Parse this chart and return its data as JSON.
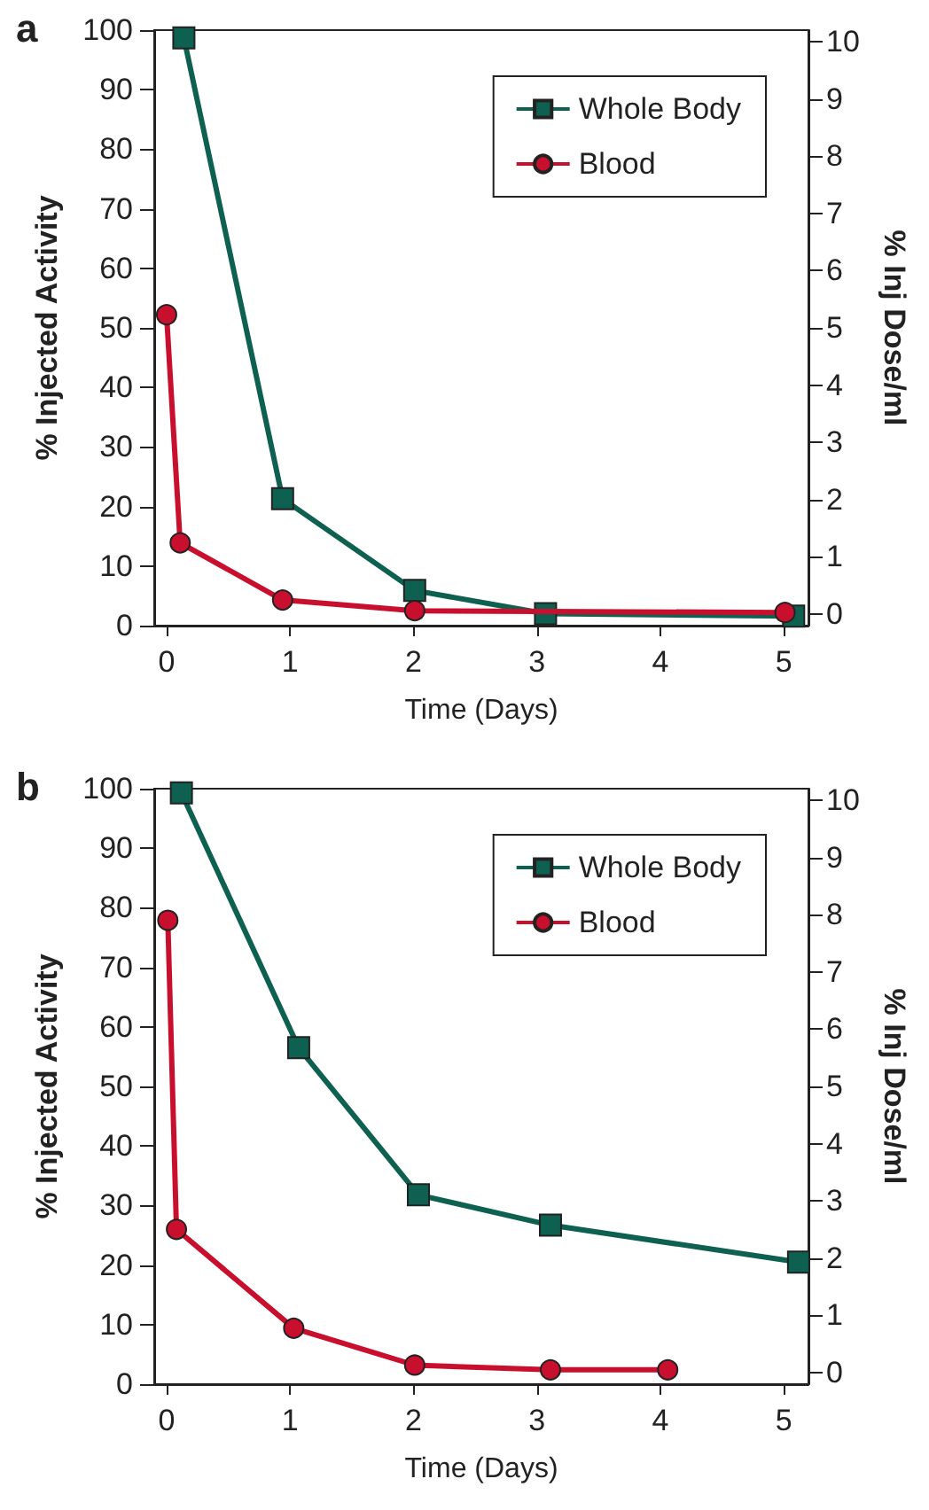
{
  "chart_data": [
    {
      "type": "line",
      "title": "a",
      "xlabel": "Time (Days)",
      "ylabel": "% Injected Activity",
      "y2label": "% Inj Dose/ml",
      "xlim": [
        -0.1,
        5.2
      ],
      "xticks": [
        0,
        1,
        2,
        3,
        4,
        5
      ],
      "ylim": [
        0,
        100
      ],
      "yticks": [
        0,
        10,
        20,
        30,
        40,
        50,
        60,
        70,
        80,
        90,
        100
      ],
      "y2lim": [
        -0.2,
        10.2
      ],
      "y2ticks": [
        0,
        1,
        2,
        3,
        4,
        5,
        6,
        7,
        8,
        9,
        10
      ],
      "legend": "top right",
      "grid": false,
      "line_style": "solid",
      "series": [
        {
          "name": "Whole Body",
          "color": "#0e6150",
          "marker": "square",
          "x": [
            0.14,
            0.94,
            2.01,
            3.07,
            5.08
          ],
          "values": [
            98.7,
            21.3,
            5.9,
            2.0,
            1.6
          ]
        },
        {
          "name": "Blood",
          "color": "#c8102e",
          "marker": "circle",
          "x": [
            0,
            0.11,
            0.94,
            2.01,
            5.01
          ],
          "values": [
            52.2,
            13.9,
            4.3,
            2.5,
            2.2
          ]
        }
      ]
    },
    {
      "type": "line",
      "title": "b",
      "xlabel": "Time (Days)",
      "ylabel": "% Injected Activity",
      "y2label": "% Inj Dose/ml",
      "xlim": [
        -0.1,
        5.2
      ],
      "xticks": [
        0,
        1,
        2,
        3,
        4,
        5
      ],
      "ylim": [
        0,
        100
      ],
      "yticks": [
        0,
        10,
        20,
        30,
        40,
        50,
        60,
        70,
        80,
        90,
        100
      ],
      "y2lim": [
        -0.2,
        10.2
      ],
      "y2ticks": [
        0,
        1,
        2,
        3,
        4,
        5,
        6,
        7,
        8,
        9,
        10
      ],
      "legend": "top right",
      "grid": false,
      "line_style": "solid",
      "series": [
        {
          "name": "Whole Body",
          "color": "#0e6150",
          "marker": "square",
          "x": [
            0.12,
            1.07,
            2.04,
            3.11,
            5.12
          ],
          "values": [
            99.3,
            56.5,
            31.8,
            26.7,
            20.5
          ]
        },
        {
          "name": "Blood",
          "color": "#c8102e",
          "marker": "circle",
          "x": [
            0.01,
            0.08,
            1.03,
            2.01,
            3.11,
            4.06
          ],
          "values": [
            77.9,
            26.0,
            9.4,
            3.2,
            2.4,
            2.4
          ]
        }
      ]
    }
  ]
}
